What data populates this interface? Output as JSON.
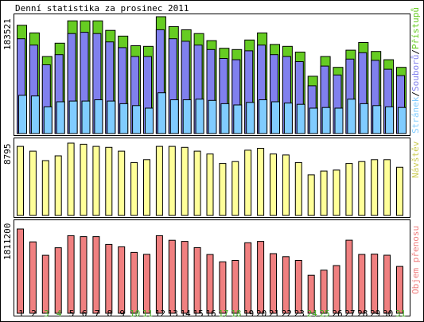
{
  "title": "Denní statistika za prosinec 2011",
  "colors": {
    "frame": "#000000",
    "hits": "#66cc22",
    "files": "#8080ee",
    "pages": "#80ccff",
    "visits": "#ffff99",
    "kbytes": "#f08080",
    "weekday_label": "#000000",
    "weekend_label": "#44aa22"
  },
  "days": [
    "1",
    "2",
    "3",
    "4",
    "5",
    "6",
    "7",
    "8",
    "9",
    "10",
    "11",
    "12",
    "13",
    "14",
    "15",
    "16",
    "17",
    "18",
    "19",
    "20",
    "21",
    "22",
    "23",
    "24",
    "25",
    "26",
    "27",
    "28",
    "29",
    "30",
    "31"
  ],
  "weekend_days": [
    "3",
    "4",
    "10",
    "11",
    "17",
    "18",
    "24",
    "25",
    "31"
  ],
  "chart_data": [
    {
      "type": "bar",
      "panel": "top",
      "ymax_label": "183521",
      "ylim": [
        0,
        183521
      ],
      "right_label": [
        "Stránek",
        "/",
        "Souborů",
        "/",
        "Přístupů"
      ],
      "right_label_colors": [
        "#80ccff",
        "#000000",
        "#8080ee",
        "#000000",
        "#66cc22"
      ],
      "series": [
        {
          "name": "Přístupů",
          "color": "#66cc22",
          "values": [
            170000,
            158000,
            121000,
            142000,
            177000,
            177000,
            177000,
            162000,
            153000,
            138000,
            137000,
            183521,
            168000,
            163000,
            157000,
            146000,
            134000,
            132000,
            147000,
            158000,
            140000,
            137000,
            128000,
            90000,
            121000,
            104000,
            131000,
            143000,
            129000,
            116000,
            104000
          ]
        },
        {
          "name": "Souborů",
          "color": "#8080ee",
          "values": [
            149000,
            139000,
            108000,
            124000,
            157000,
            159000,
            157000,
            144000,
            135000,
            121000,
            121000,
            163000,
            149000,
            145000,
            139000,
            132000,
            118000,
            116000,
            130000,
            139000,
            124000,
            121000,
            113000,
            75000,
            106000,
            92000,
            117000,
            127000,
            115000,
            101000,
            91000
          ]
        },
        {
          "name": "Stránek",
          "color": "#80ccff",
          "values": [
            60000,
            59000,
            42000,
            50000,
            51000,
            51000,
            53000,
            51000,
            47000,
            44000,
            40000,
            64000,
            53000,
            53000,
            54000,
            52000,
            47000,
            45000,
            49000,
            53000,
            50000,
            48000,
            46000,
            40000,
            41000,
            40000,
            54000,
            47000,
            44000,
            42000,
            41000
          ]
        }
      ]
    },
    {
      "type": "bar",
      "panel": "middle",
      "ymax_label": "8795",
      "ylim": [
        0,
        8795
      ],
      "right_label": [
        "Návštěv"
      ],
      "right_label_colors": [
        "#cccc55"
      ],
      "series": [
        {
          "name": "Návštěv",
          "color": "#ffff99",
          "values": [
            8395,
            7819,
            6668,
            7244,
            8795,
            8655,
            8395,
            8280,
            7819,
            6438,
            6784,
            8395,
            8395,
            8280,
            7819,
            7474,
            6323,
            6553,
            7934,
            8165,
            7474,
            7359,
            6438,
            4940,
            5401,
            5516,
            6323,
            6553,
            6784,
            6784,
            5862
          ]
        }
      ]
    },
    {
      "type": "bar",
      "panel": "bottom",
      "ymax_label": "1811200",
      "ylim": [
        0,
        1811200
      ],
      "right_label": [
        "Objem přenosu"
      ],
      "right_label_colors": [
        "#f08080"
      ],
      "series": [
        {
          "name": "Objem přenosu",
          "color": "#f08080",
          "values": [
            1811200,
            1534000,
            1245000,
            1408000,
            1668000,
            1648000,
            1648000,
            1480000,
            1428000,
            1308000,
            1266000,
            1668000,
            1568000,
            1544000,
            1412000,
            1262000,
            1106000,
            1136000,
            1516000,
            1544000,
            1282000,
            1216000,
            1136000,
            816000,
            926000,
            1026000,
            1570000,
            1264000,
            1272000,
            1248000,
            1006000
          ]
        }
      ]
    }
  ]
}
